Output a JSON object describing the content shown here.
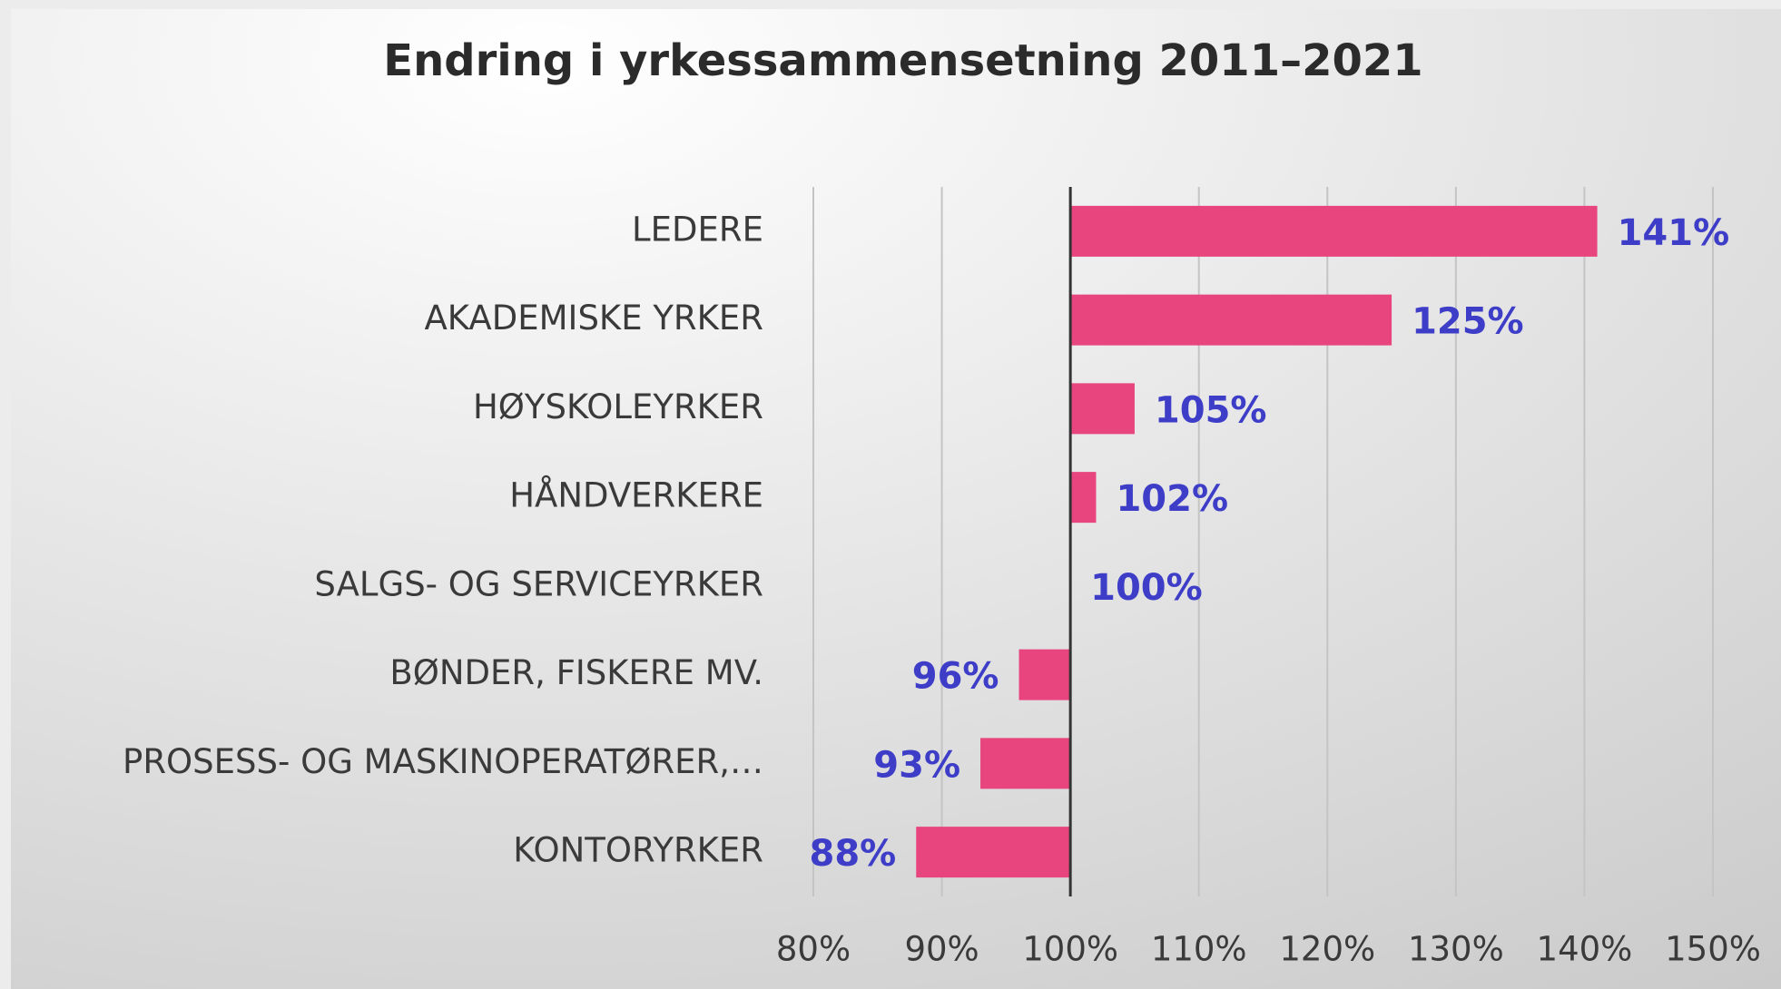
{
  "chart_data": {
    "type": "hbar",
    "title": "Endring i yrkessammensetning 2011–2021",
    "categories": [
      "LEDERE",
      "AKADEMISKE YRKER",
      "HØYSKOLEYRKER",
      "HÅNDVERKERE",
      "SALGS- OG SERVICEYRKER",
      "BØNDER, FISKERE MV.",
      "PROSESS- OG MASKINOPERATØRER,…",
      "KONTORYRKER"
    ],
    "values": [
      141,
      125,
      105,
      102,
      100,
      96,
      93,
      88
    ],
    "value_labels": [
      "141%",
      "125%",
      "105%",
      "102%",
      "100%",
      "96%",
      "93%",
      "88%"
    ],
    "color": "#e8457e",
    "label_color": "#3d3dc8",
    "xlim": [
      80,
      150
    ],
    "xbase": 100,
    "xticks": [
      {
        "value": 80,
        "label": "80%"
      },
      {
        "value": 90,
        "label": "90%"
      },
      {
        "value": 100,
        "label": "100%"
      },
      {
        "value": 110,
        "label": "110%"
      },
      {
        "value": 120,
        "label": "120%"
      },
      {
        "value": 130,
        "label": "130%"
      },
      {
        "value": 140,
        "label": "140%"
      },
      {
        "value": 150,
        "label": "150%"
      }
    ],
    "grid": true
  }
}
